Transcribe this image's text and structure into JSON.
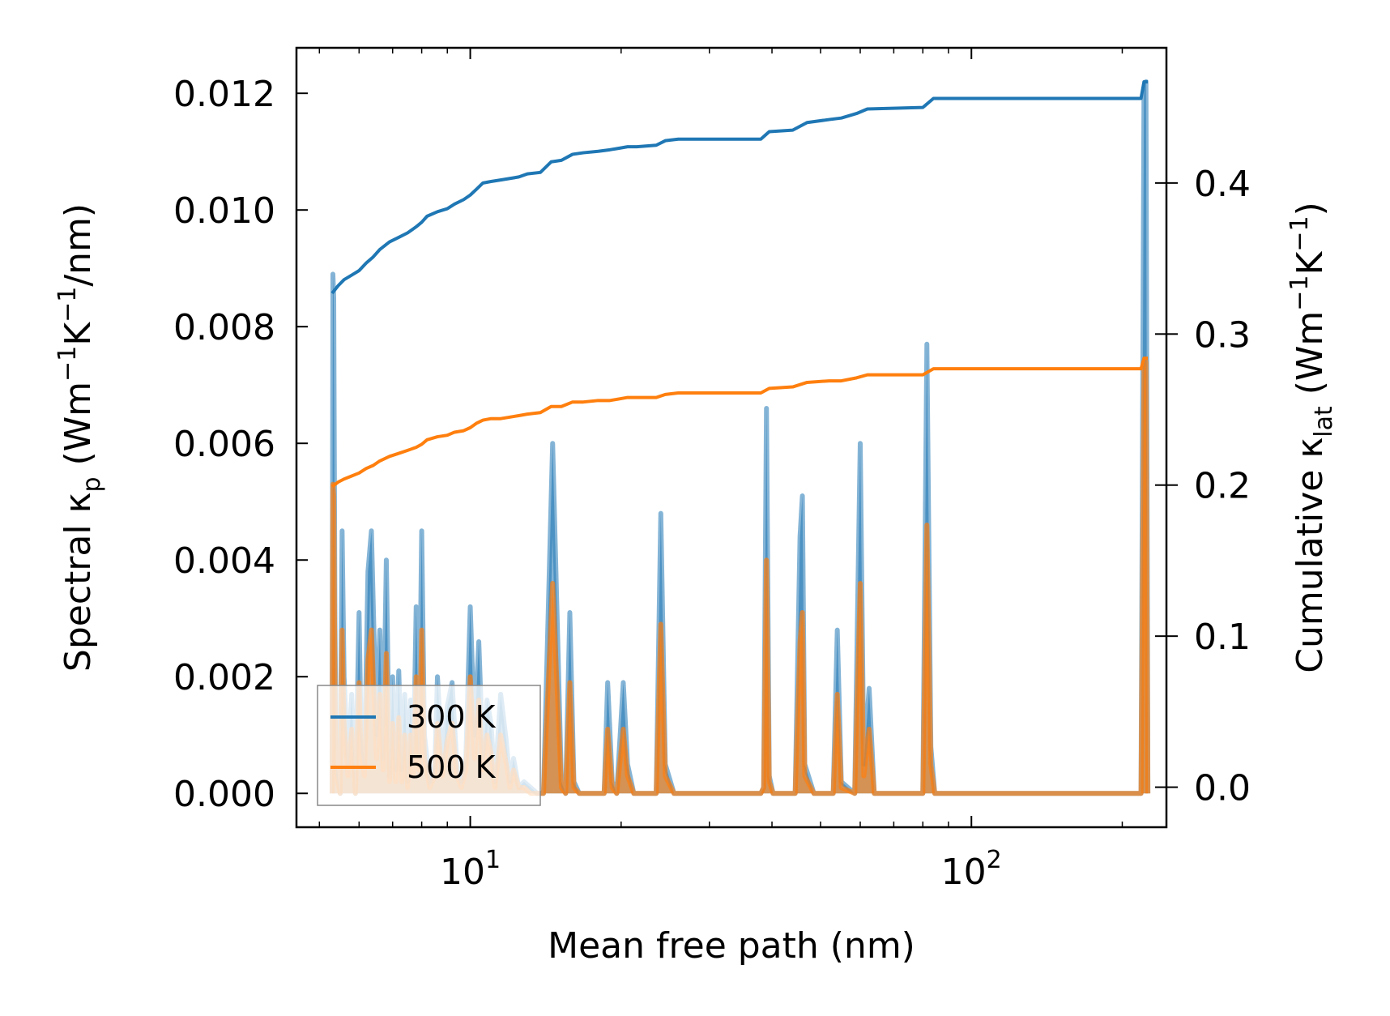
{
  "chart_data": {
    "type": "area",
    "title": "",
    "xlabel": "Mean free path (nm)",
    "ylabel_left": "Spectral κ_p (Wm⁻¹K⁻¹/nm)",
    "ylabel_right": "Cumulative κ_lat (Wm⁻¹K⁻¹)",
    "x_scale": "log",
    "xlim": [
      4.5,
      245
    ],
    "ylim_left": [
      -0.00058,
      0.01278
    ],
    "ylim_right": [
      -0.0265,
      0.4895
    ],
    "x_ticks": [
      {
        "value": 10,
        "base": "10",
        "exp": "1"
      },
      {
        "value": 100,
        "base": "10",
        "exp": "2"
      }
    ],
    "y_ticks_left": [
      {
        "value": 0.0,
        "label": "0.000"
      },
      {
        "value": 0.002,
        "label": "0.002"
      },
      {
        "value": 0.004,
        "label": "0.004"
      },
      {
        "value": 0.006,
        "label": "0.006"
      },
      {
        "value": 0.008,
        "label": "0.008"
      },
      {
        "value": 0.01,
        "label": "0.010"
      },
      {
        "value": 0.012,
        "label": "0.012"
      }
    ],
    "y_ticks_right": [
      {
        "value": 0.0,
        "label": "0.0"
      },
      {
        "value": 0.1,
        "label": "0.1"
      },
      {
        "value": 0.2,
        "label": "0.2"
      },
      {
        "value": 0.3,
        "label": "0.3"
      },
      {
        "value": 0.4,
        "label": "0.4"
      }
    ],
    "legend": {
      "placement": "lower-left",
      "entries": [
        "300 K",
        "500 K"
      ]
    },
    "series": [
      {
        "name": "300 K",
        "color": "#1f77b4",
        "spectral": {
          "x": [
            5.3,
            5.32,
            5.34,
            5.37,
            5.4,
            5.5,
            5.55,
            5.6,
            5.7,
            5.8,
            5.9,
            6.0,
            6.05,
            6.15,
            6.25,
            6.35,
            6.5,
            6.6,
            6.7,
            6.8,
            6.9,
            7.0,
            7.1,
            7.2,
            7.3,
            7.4,
            7.5,
            7.6,
            7.7,
            7.8,
            7.9,
            8.0,
            8.1,
            8.3,
            8.5,
            8.6,
            8.8,
            9.0,
            9.2,
            9.4,
            9.6,
            9.8,
            10.0,
            10.2,
            10.4,
            10.6,
            10.8,
            11.0,
            11.2,
            11.5,
            11.8,
            12.0,
            12.2,
            12.5,
            12.8,
            13.2,
            13.6,
            14.0,
            14.6,
            15.2,
            15.5,
            15.8,
            16.1,
            16.5,
            17.0,
            18.5,
            18.8,
            19.2,
            19.6,
            20.2,
            20.6,
            21.2,
            21.6,
            23.5,
            24.0,
            24.5,
            25.5,
            38.0,
            38.5,
            39.0,
            39.5,
            40.2,
            44.5,
            45.5,
            46.0,
            46.5,
            48.5,
            53.0,
            54.0,
            55.0,
            58.5,
            60.0,
            61.0,
            62.5,
            64.0,
            80.0,
            81.5,
            83.0,
            84.5,
            85.5,
            87.0,
            218.0,
            221.0,
            223.0,
            225.0
          ],
          "y": [
            0,
            0.0089,
            0.0085,
            0.003,
            0.0005,
            0,
            0.0045,
            0.002,
            0.0005,
            0.0017,
            0,
            0.0031,
            0.0012,
            0.0005,
            0.0038,
            0.0045,
            0.001,
            0.0028,
            0.0006,
            0.004,
            0.0003,
            0.002,
            0.0004,
            0.0021,
            0.0004,
            0.0017,
            0.0002,
            0.0016,
            0.0005,
            0.0032,
            0.0006,
            0.0045,
            0.001,
            0.0002,
            0.0005,
            0.002,
            0.0005,
            0.0015,
            0.0019,
            0.0005,
            0.0002,
            0.0006,
            0.0032,
            0.001,
            0.0026,
            0.0006,
            0.0016,
            0.0012,
            0.0002,
            0.0017,
            0.0009,
            0.0002,
            0.0006,
            0.0001,
            0.0002,
            0.0001,
            0,
            0,
            0.006,
            0.0002,
            0,
            0.0031,
            0.0002,
            0,
            0,
            0,
            0.0019,
            0.0002,
            0,
            0.0019,
            0.0005,
            0,
            0,
            0,
            0.0048,
            0.0005,
            0,
            0,
            0.0001,
            0.0066,
            0.0003,
            0,
            0,
            0.0044,
            0.0051,
            0.0005,
            0,
            0,
            0.0028,
            0.0002,
            0,
            0.006,
            0.0005,
            0.0018,
            0,
            0,
            0.0077,
            0.0008,
            0,
            0,
            0,
            0,
            0.0121,
            0.0122,
            0
          ]
        },
        "cumulative": {
          "x": [
            5.3,
            5.45,
            5.6,
            5.8,
            6.0,
            6.2,
            6.4,
            6.6,
            6.9,
            7.2,
            7.5,
            7.8,
            8.0,
            8.2,
            8.6,
            9.0,
            9.3,
            9.7,
            10.0,
            10.3,
            10.6,
            11.0,
            11.5,
            12.0,
            12.5,
            13.0,
            13.8,
            14.5,
            15.2,
            16.0,
            16.8,
            18.0,
            19.0,
            19.8,
            20.6,
            21.5,
            23.5,
            24.5,
            26.0,
            30.0,
            38.0,
            39.5,
            44.0,
            47.0,
            52.0,
            55.0,
            59.0,
            62.0,
            80.0,
            84.0,
            120.0,
            218.0,
            221.0,
            225.0
          ],
          "y": [
            0.327,
            0.332,
            0.336,
            0.339,
            0.342,
            0.347,
            0.351,
            0.356,
            0.361,
            0.364,
            0.367,
            0.371,
            0.374,
            0.378,
            0.381,
            0.383,
            0.386,
            0.389,
            0.392,
            0.396,
            0.4,
            0.401,
            0.402,
            0.403,
            0.404,
            0.406,
            0.407,
            0.414,
            0.415,
            0.419,
            0.42,
            0.421,
            0.422,
            0.423,
            0.424,
            0.424,
            0.425,
            0.428,
            0.429,
            0.429,
            0.429,
            0.434,
            0.435,
            0.44,
            0.442,
            0.443,
            0.446,
            0.449,
            0.45,
            0.456,
            0.456,
            0.456,
            0.467,
            0.467
          ]
        }
      },
      {
        "name": "500 K",
        "color": "#ff7f0e",
        "spectral": {
          "x": [
            5.3,
            5.32,
            5.34,
            5.37,
            5.4,
            5.5,
            5.55,
            5.6,
            5.7,
            5.8,
            5.9,
            6.0,
            6.05,
            6.15,
            6.25,
            6.35,
            6.5,
            6.6,
            6.7,
            6.8,
            6.9,
            7.0,
            7.1,
            7.2,
            7.3,
            7.4,
            7.5,
            7.6,
            7.7,
            7.8,
            7.9,
            8.0,
            8.1,
            8.3,
            8.5,
            8.6,
            8.8,
            9.0,
            9.2,
            9.4,
            9.6,
            9.8,
            10.0,
            10.2,
            10.4,
            10.6,
            10.8,
            11.0,
            11.2,
            11.5,
            11.8,
            12.0,
            12.2,
            12.5,
            12.8,
            13.2,
            13.6,
            14.0,
            14.6,
            15.2,
            15.5,
            15.8,
            16.1,
            16.5,
            17.0,
            18.5,
            18.8,
            19.2,
            19.6,
            20.2,
            20.6,
            21.2,
            21.6,
            23.5,
            24.0,
            24.5,
            25.5,
            38.0,
            38.5,
            39.0,
            39.5,
            40.2,
            44.5,
            45.5,
            46.0,
            46.5,
            48.5,
            53.0,
            54.0,
            55.0,
            58.5,
            60.0,
            61.0,
            62.5,
            64.0,
            80.0,
            81.5,
            83.0,
            84.5,
            85.5,
            87.0,
            218.0,
            221.0,
            223.0,
            225.0
          ],
          "y": [
            0,
            0.0053,
            0.0051,
            0.0018,
            0.0003,
            0,
            0.0028,
            0.0012,
            0.0003,
            0.0011,
            0,
            0.0019,
            0.0007,
            0.0003,
            0.0023,
            0.0028,
            0.0006,
            0.0017,
            0.0004,
            0.0024,
            0.0002,
            0.0012,
            0.0002,
            0.0013,
            0.0002,
            0.001,
            0.0001,
            0.001,
            0.0003,
            0.002,
            0.0004,
            0.0028,
            0.0006,
            0.0001,
            0.0003,
            0.0012,
            0.0003,
            0.0009,
            0.0012,
            0.0003,
            0.0001,
            0.0004,
            0.002,
            0.0006,
            0.0016,
            0.0004,
            0.001,
            0.0007,
            0.0001,
            0.001,
            0.0005,
            0.0001,
            0.0004,
            0.0001,
            0.0001,
            0,
            0,
            0,
            0.0036,
            0.0001,
            0,
            0.0019,
            0.0001,
            0,
            0,
            0,
            0.0011,
            0.0001,
            0,
            0.0011,
            0.0003,
            0,
            0,
            0,
            0.0029,
            0.0003,
            0,
            0,
            0.0001,
            0.004,
            0.0002,
            0,
            0,
            0.0026,
            0.0031,
            0.0003,
            0,
            0,
            0.0017,
            0.0001,
            0,
            0.0036,
            0.0003,
            0.0011,
            0,
            0,
            0.0046,
            0.0005,
            0,
            0,
            0,
            0,
            0.0073,
            0.0074,
            0
          ]
        },
        "cumulative": {
          "x": [
            5.3,
            5.45,
            5.6,
            5.8,
            6.0,
            6.2,
            6.4,
            6.6,
            6.9,
            7.2,
            7.5,
            7.8,
            8.0,
            8.2,
            8.6,
            9.0,
            9.3,
            9.7,
            10.0,
            10.3,
            10.6,
            11.0,
            11.5,
            12.0,
            12.5,
            13.0,
            13.8,
            14.5,
            15.2,
            16.0,
            16.8,
            18.0,
            19.0,
            19.8,
            20.6,
            21.5,
            23.5,
            24.5,
            26.0,
            30.0,
            38.0,
            39.5,
            44.0,
            47.0,
            52.0,
            55.0,
            59.0,
            62.0,
            80.0,
            84.0,
            120.0,
            218.0,
            221.0,
            225.0
          ],
          "y": [
            0.199,
            0.202,
            0.204,
            0.206,
            0.208,
            0.211,
            0.213,
            0.216,
            0.219,
            0.221,
            0.223,
            0.225,
            0.227,
            0.23,
            0.232,
            0.233,
            0.235,
            0.236,
            0.238,
            0.241,
            0.243,
            0.244,
            0.244,
            0.245,
            0.246,
            0.247,
            0.248,
            0.252,
            0.252,
            0.255,
            0.255,
            0.256,
            0.256,
            0.257,
            0.258,
            0.258,
            0.258,
            0.26,
            0.261,
            0.261,
            0.261,
            0.264,
            0.265,
            0.268,
            0.269,
            0.269,
            0.271,
            0.273,
            0.273,
            0.277,
            0.277,
            0.277,
            0.284,
            0.284
          ]
        }
      }
    ]
  }
}
